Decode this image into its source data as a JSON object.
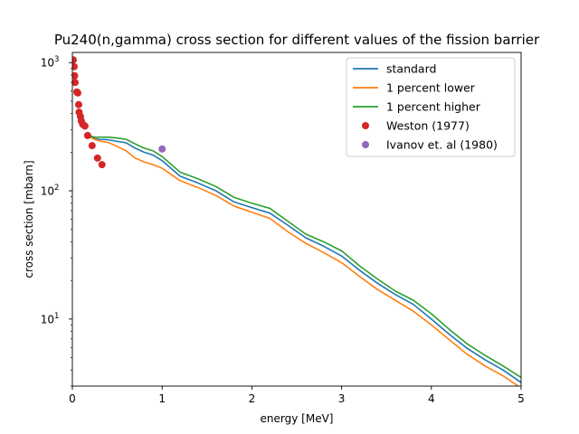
{
  "chart_data": {
    "type": "line",
    "title": "Pu240(n,gamma) cross section for different values of the fission barrier",
    "xlabel": "energy [MeV]",
    "ylabel": "cross section [mbarn]",
    "xlim": [
      0,
      5
    ],
    "ylim": [
      3,
      1200
    ],
    "yscale": "log",
    "grid": false,
    "legend_placement": "top-right",
    "x_ticks": [
      "0",
      "1",
      "2",
      "3",
      "4",
      "5"
    ],
    "y_ticks": [
      {
        "value": 10,
        "label": "10",
        "exp": "1"
      },
      {
        "value": 100,
        "label": "10",
        "exp": "2"
      },
      {
        "value": 1000,
        "label": "10",
        "exp": "3"
      }
    ],
    "series": [
      {
        "name": "standard",
        "kind": "line",
        "color": "#1f77b4",
        "points": [
          [
            0.2,
            265
          ],
          [
            0.25,
            255
          ],
          [
            0.3,
            252
          ],
          [
            0.4,
            250
          ],
          [
            0.5,
            243
          ],
          [
            0.6,
            237
          ],
          [
            0.7,
            215
          ],
          [
            0.8,
            200
          ],
          [
            0.9,
            190
          ],
          [
            1.0,
            172
          ],
          [
            1.2,
            130
          ],
          [
            1.4,
            115
          ],
          [
            1.6,
            100
          ],
          [
            1.8,
            82
          ],
          [
            2.0,
            74
          ],
          [
            2.2,
            67
          ],
          [
            2.4,
            54
          ],
          [
            2.6,
            43
          ],
          [
            2.8,
            37
          ],
          [
            3.0,
            31
          ],
          [
            3.2,
            24
          ],
          [
            3.4,
            19
          ],
          [
            3.6,
            15.5
          ],
          [
            3.8,
            13
          ],
          [
            4.0,
            10
          ],
          [
            4.2,
            7.6
          ],
          [
            4.4,
            5.9
          ],
          [
            4.6,
            4.8
          ],
          [
            4.8,
            4.0
          ],
          [
            5.0,
            3.2
          ]
        ]
      },
      {
        "name": "1 percent lower",
        "kind": "line",
        "color": "#ff7f0e",
        "points": [
          [
            0.2,
            262
          ],
          [
            0.25,
            252
          ],
          [
            0.3,
            245
          ],
          [
            0.4,
            238
          ],
          [
            0.5,
            222
          ],
          [
            0.6,
            205
          ],
          [
            0.7,
            180
          ],
          [
            0.8,
            168
          ],
          [
            0.9,
            160
          ],
          [
            1.0,
            150
          ],
          [
            1.2,
            120
          ],
          [
            1.4,
            106
          ],
          [
            1.6,
            92
          ],
          [
            1.8,
            76
          ],
          [
            2.0,
            68
          ],
          [
            2.2,
            61
          ],
          [
            2.4,
            48
          ],
          [
            2.6,
            39
          ],
          [
            2.8,
            33
          ],
          [
            3.0,
            27.5
          ],
          [
            3.2,
            21.5
          ],
          [
            3.4,
            17
          ],
          [
            3.6,
            14
          ],
          [
            3.8,
            11.5
          ],
          [
            4.0,
            9.0
          ],
          [
            4.2,
            6.9
          ],
          [
            4.4,
            5.3
          ],
          [
            4.6,
            4.3
          ],
          [
            4.8,
            3.6
          ],
          [
            5.0,
            2.9
          ]
        ]
      },
      {
        "name": "1 percent higher",
        "kind": "line",
        "color": "#2ca02c",
        "points": [
          [
            0.2,
            268
          ],
          [
            0.25,
            262
          ],
          [
            0.3,
            262
          ],
          [
            0.4,
            262
          ],
          [
            0.5,
            258
          ],
          [
            0.6,
            252
          ],
          [
            0.7,
            232
          ],
          [
            0.8,
            215
          ],
          [
            0.9,
            205
          ],
          [
            1.0,
            185
          ],
          [
            1.2,
            140
          ],
          [
            1.4,
            124
          ],
          [
            1.6,
            108
          ],
          [
            1.8,
            89
          ],
          [
            2.0,
            80
          ],
          [
            2.2,
            73
          ],
          [
            2.4,
            58
          ],
          [
            2.6,
            46
          ],
          [
            2.8,
            40
          ],
          [
            3.0,
            34
          ],
          [
            3.2,
            26
          ],
          [
            3.4,
            20.5
          ],
          [
            3.6,
            16.5
          ],
          [
            3.8,
            14
          ],
          [
            4.0,
            11
          ],
          [
            4.2,
            8.3
          ],
          [
            4.4,
            6.4
          ],
          [
            4.6,
            5.2
          ],
          [
            4.8,
            4.3
          ],
          [
            5.0,
            3.5
          ]
        ]
      },
      {
        "name": "Weston (1977)",
        "kind": "scatter",
        "color": "#d62728",
        "points": [
          [
            0.01,
            1050
          ],
          [
            0.02,
            930
          ],
          [
            0.025,
            790
          ],
          [
            0.03,
            700
          ],
          [
            0.05,
            590
          ],
          [
            0.06,
            580
          ],
          [
            0.07,
            470
          ],
          [
            0.075,
            410
          ],
          [
            0.09,
            380
          ],
          [
            0.1,
            350
          ],
          [
            0.115,
            330
          ],
          [
            0.14,
            320
          ],
          [
            0.17,
            270
          ],
          [
            0.22,
            225
          ],
          [
            0.28,
            180
          ],
          [
            0.33,
            160
          ]
        ]
      },
      {
        "name": "Ivanov et. al (1980)",
        "kind": "scatter",
        "color": "#9467bd",
        "points": [
          [
            1.0,
            212
          ]
        ]
      }
    ]
  }
}
